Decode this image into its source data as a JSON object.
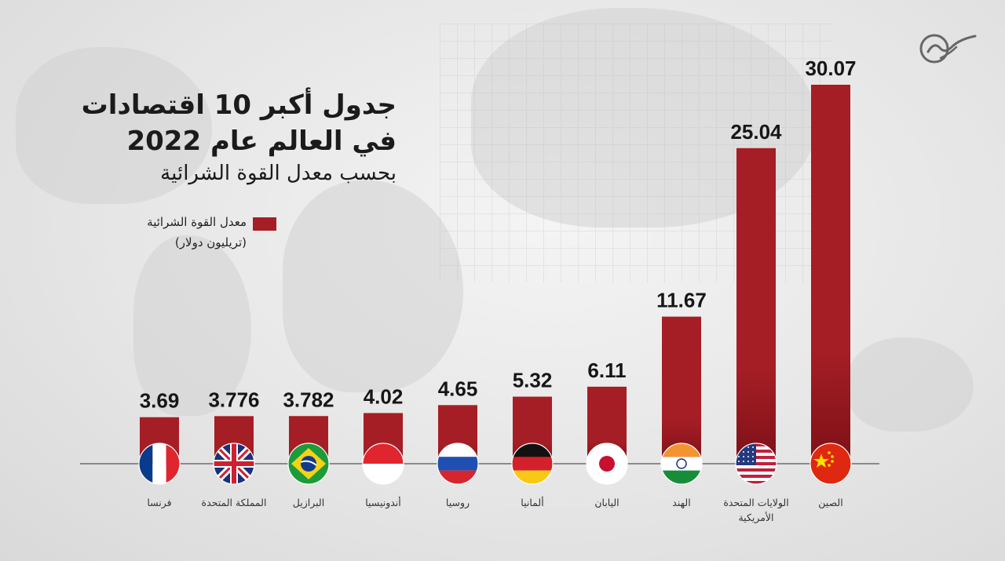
{
  "header": {
    "title_line1": "جدول أكبر 10 اقتصادات",
    "title_line2": "في العالم عام 2022",
    "subtitle": "بحسب معدل القوة الشرائية"
  },
  "legend": {
    "label": "معدل القوة الشرائية",
    "unit": "(تريليون دولار)",
    "color": "#a61e25"
  },
  "logo_icon": "almayadeen-logo-icon",
  "chart_data": {
    "type": "bar",
    "title": "جدول أكبر 10 اقتصادات في العالم عام 2022",
    "subtitle": "بحسب معدل القوة الشرائية",
    "series_name": "معدل القوة الشرائية",
    "unit": "(تريليون دولار)",
    "categories": [
      {
        "label": "فرنسا",
        "flag": "france-flag-icon"
      },
      {
        "label": "المملكة المتحدة",
        "flag": "united-kingdom-flag-icon"
      },
      {
        "label": "البرازيل",
        "flag": "brazil-flag-icon"
      },
      {
        "label": "أندونيسيا",
        "flag": "indonesia-flag-icon"
      },
      {
        "label": "روسيا",
        "flag": "russia-flag-icon"
      },
      {
        "label": "ألمانيا",
        "flag": "germany-flag-icon"
      },
      {
        "label": "اليابان",
        "flag": "japan-flag-icon"
      },
      {
        "label": "الهند",
        "flag": "india-flag-icon"
      },
      {
        "label": "الولايات المتحدة|الأمريكية",
        "flag": "usa-flag-icon"
      },
      {
        "label": "الصين",
        "flag": "china-flag-icon"
      }
    ],
    "values": [
      "3.69",
      "3.776",
      "3.782",
      "4.02",
      "4.65",
      "5.32",
      "6.11",
      "11.67",
      "25.04",
      "30.07"
    ],
    "bar_color": "#a61e25",
    "legend_position": "left, under title",
    "grid": false
  }
}
